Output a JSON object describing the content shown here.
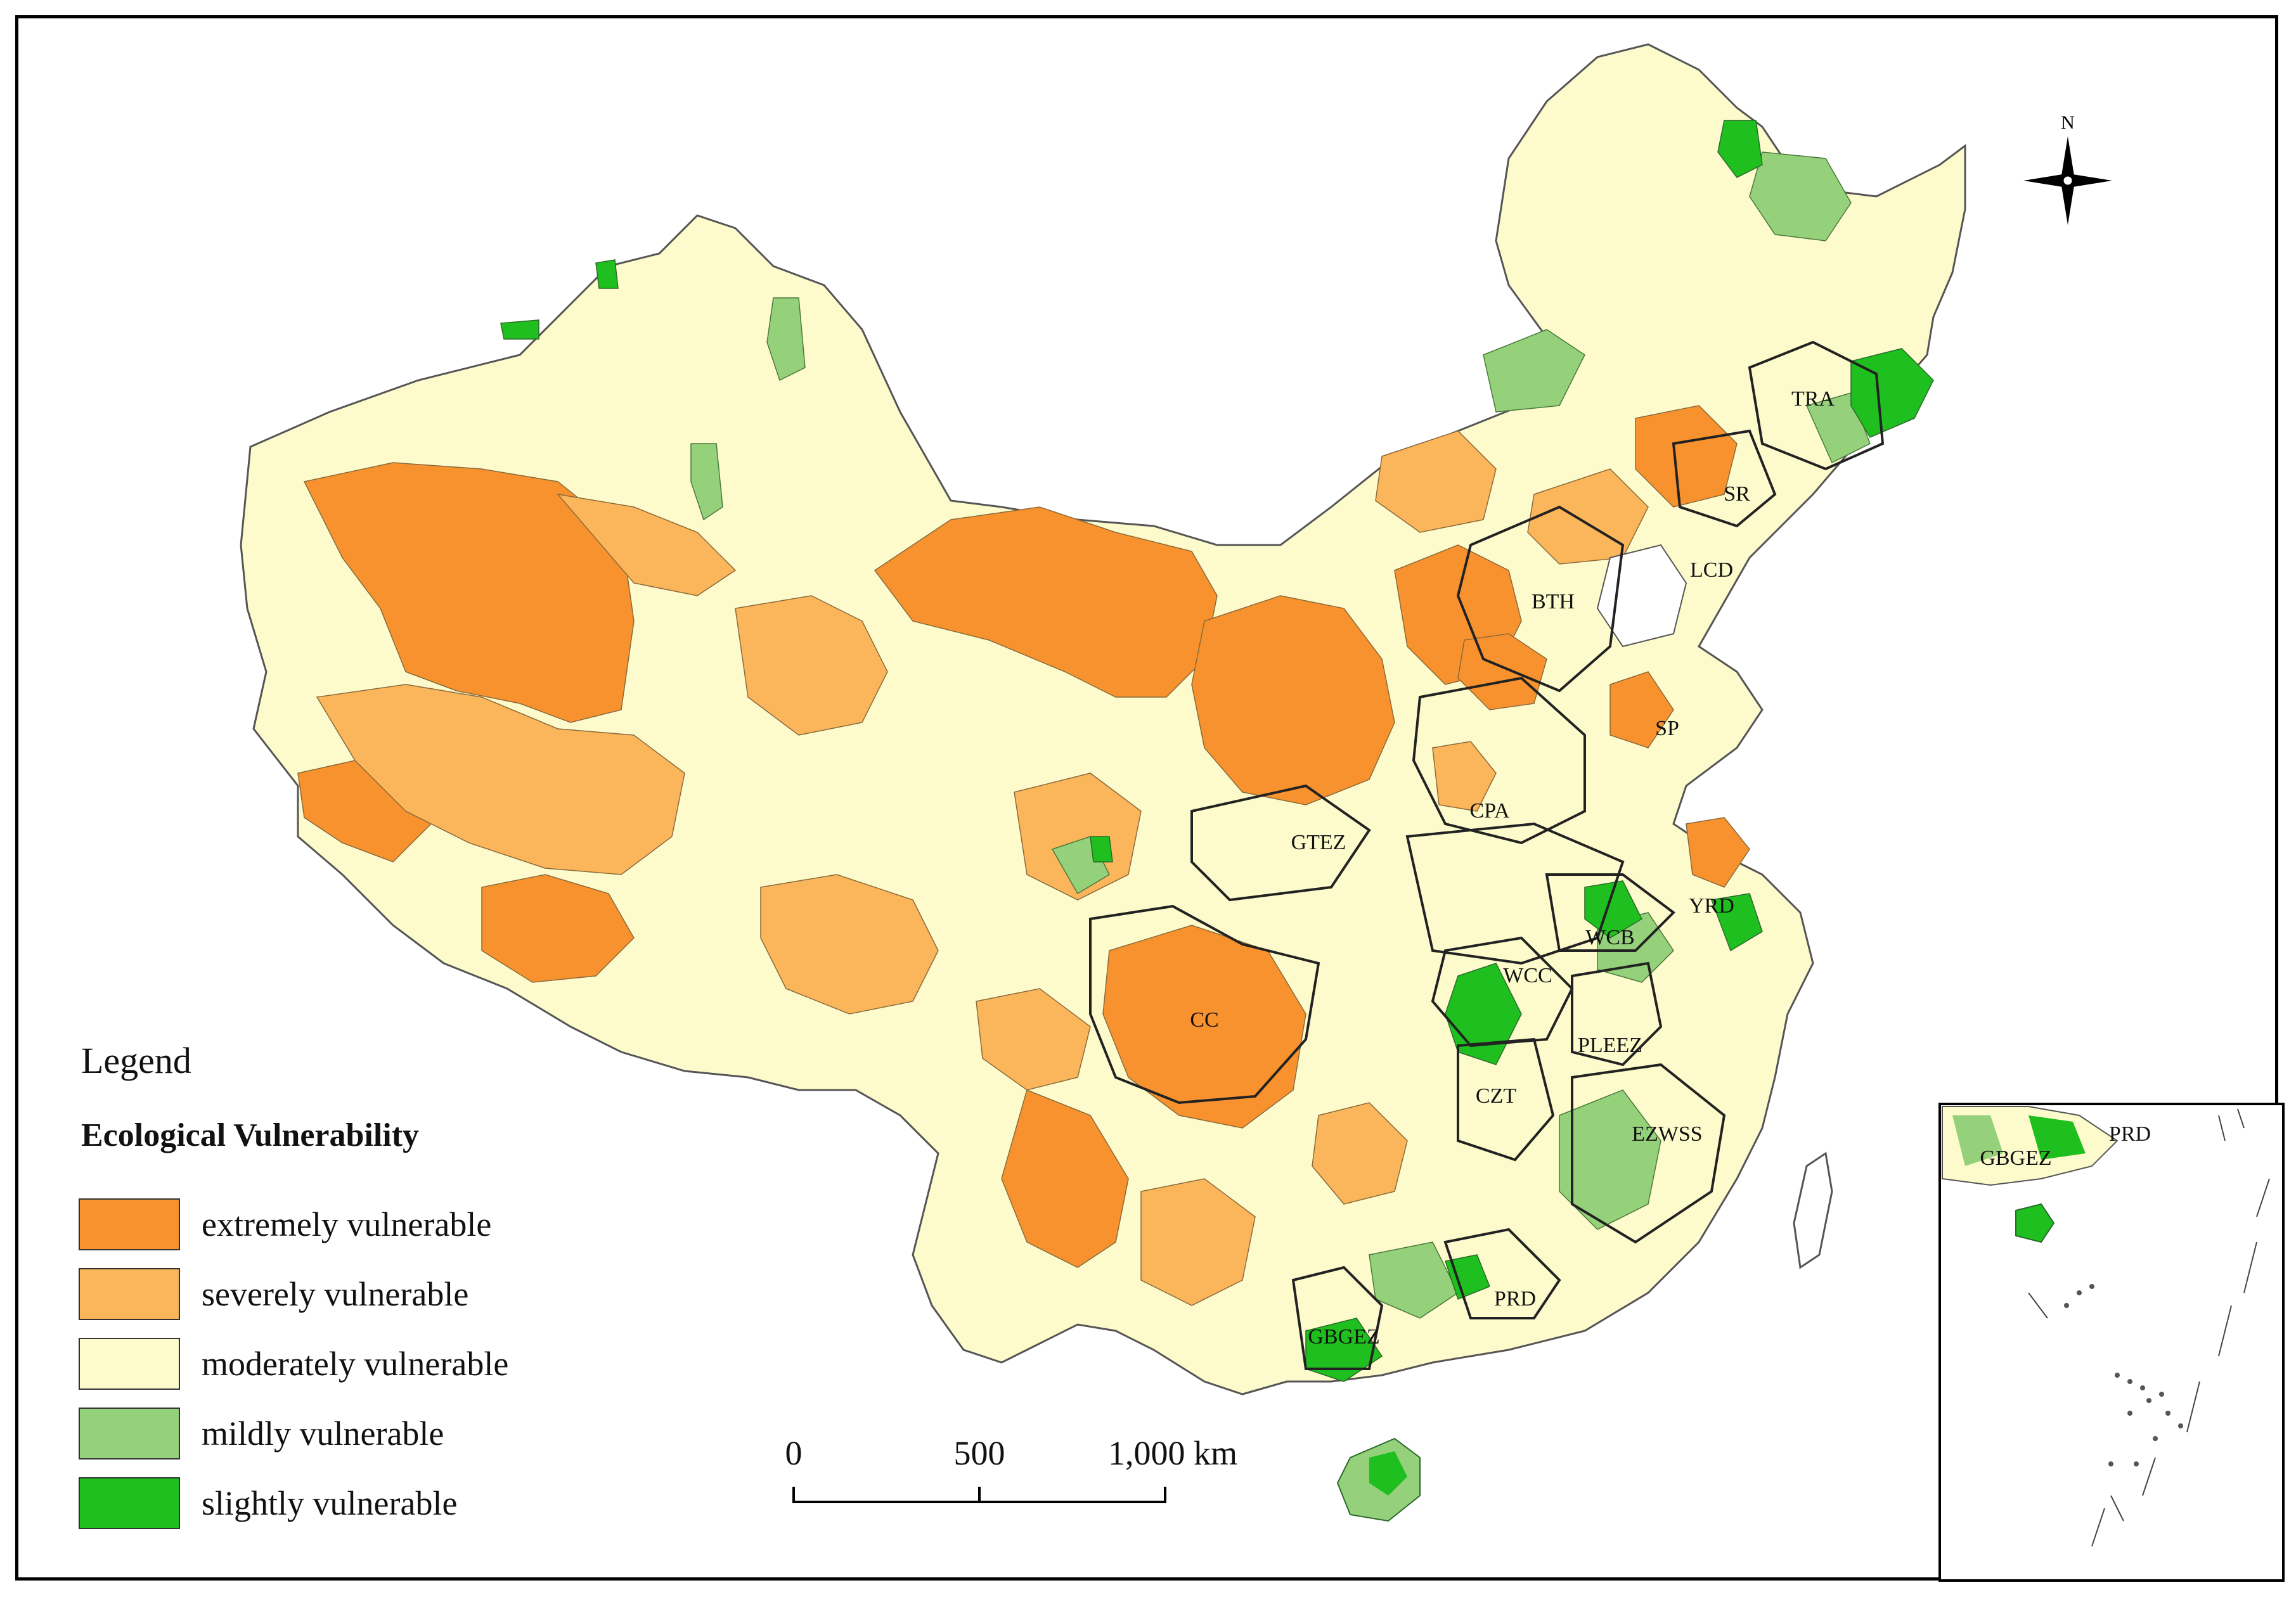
{
  "legend": {
    "title": "Legend",
    "subtitle": "Ecological Vulnerability",
    "items": [
      {
        "label": "extremely vulnerable",
        "color": "#f7922e"
      },
      {
        "label": "severely  vulnerable",
        "color": "#fbb55a"
      },
      {
        "label": "moderately  vulnerable",
        "color": "#fdfbcc"
      },
      {
        "label": "mildly  vulnerable",
        "color": "#95d07a"
      },
      {
        "label": "slightly  vulnerable",
        "color": "#1ebf1e"
      }
    ]
  },
  "scale_bar": {
    "ticks": [
      "0",
      "500",
      "1,000 km"
    ]
  },
  "north_arrow": {
    "label": "N"
  },
  "regions": [
    "TRA",
    "SR",
    "LCD",
    "BTH",
    "SP",
    "CPA",
    "GTEZ",
    "YRD",
    "WCB",
    "WCC",
    "CC",
    "PLEEZ",
    "CZT",
    "EZWSS",
    "PRD",
    "GBGEZ"
  ],
  "inset": {
    "labels": [
      "PRD",
      "GBGEZ"
    ]
  }
}
